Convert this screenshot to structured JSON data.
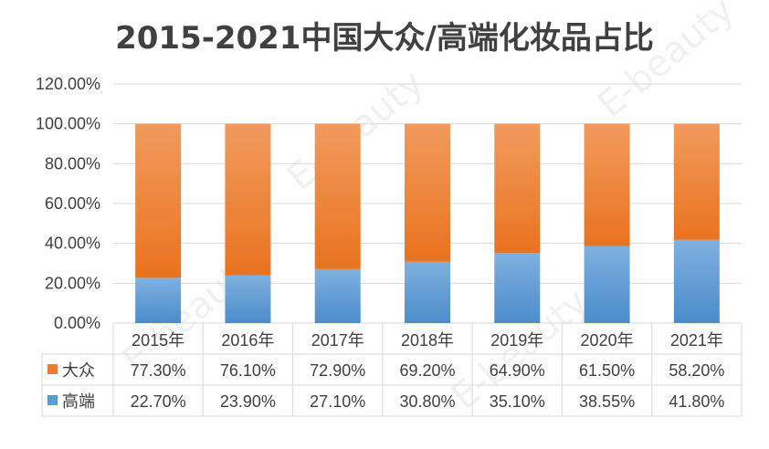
{
  "title": "2015-2021中国大众/高端化妆品占比",
  "watermark": "E-beauty",
  "colors": {
    "mass": "#ED7D31",
    "premium": "#5B9BD5",
    "grid": "#D9D9D9",
    "text": "#404040"
  },
  "chart_data": {
    "type": "bar",
    "stacked": true,
    "title": "2015-2021中国大众/高端化妆品占比",
    "categories": [
      "2015年",
      "2016年",
      "2017年",
      "2018年",
      "2019年",
      "2020年",
      "2021年"
    ],
    "series": [
      {
        "name": "大众",
        "values": [
          77.3,
          76.1,
          72.9,
          69.2,
          64.9,
          61.5,
          58.2
        ],
        "labels": [
          "77.30%",
          "76.10%",
          "72.90%",
          "69.20%",
          "64.90%",
          "61.50%",
          "58.20%"
        ]
      },
      {
        "name": "高端",
        "values": [
          22.7,
          23.9,
          27.1,
          30.8,
          35.1,
          38.55,
          41.8
        ],
        "labels": [
          "22.70%",
          "23.90%",
          "27.10%",
          "30.80%",
          "35.10%",
          "38.55%",
          "41.80%"
        ]
      }
    ],
    "ylim": [
      0,
      120
    ],
    "yticks": [
      0,
      20,
      40,
      60,
      80,
      100,
      120
    ],
    "ytick_labels": [
      "0.00%",
      "20.00%",
      "40.00%",
      "60.00%",
      "80.00%",
      "100.00%",
      "120.00%"
    ],
    "xlabel": "",
    "ylabel": "",
    "grid": true,
    "data_table": true
  }
}
